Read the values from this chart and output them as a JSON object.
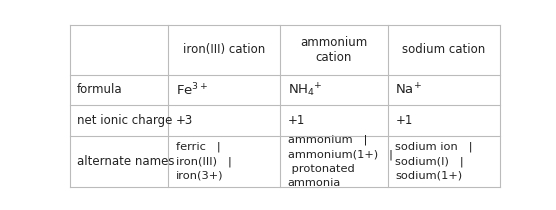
{
  "col_headers": [
    "",
    "iron(III) cation",
    "ammonium\ncation",
    "sodium cation"
  ],
  "row_labels": [
    "formula",
    "net ionic charge",
    "alternate names"
  ],
  "formula_cells": [
    "Fe$^{3+}$",
    "NH$_4$$^{+}$",
    "Na$^{+}$"
  ],
  "charge_cells": [
    "+3",
    "+1",
    "+1"
  ],
  "altnames_cells": [
    "ferric   |\niron(III)   |\niron(3+)",
    "ammonium   |\nammonium(1+)   |\n protonated\nammonia",
    "sodium ion   |\nsodium(I)   |\nsodium(1+)"
  ],
  "bg_color": "#ffffff",
  "text_color": "#222222",
  "line_color": "#bbbbbb",
  "col_bounds": [
    0.0,
    0.228,
    0.488,
    0.738,
    1.0
  ],
  "row_tops": [
    1.0,
    0.695,
    0.505,
    0.315,
    0.0
  ],
  "font_size": 8.5,
  "formula_font_size": 9.5,
  "lw": 0.8
}
